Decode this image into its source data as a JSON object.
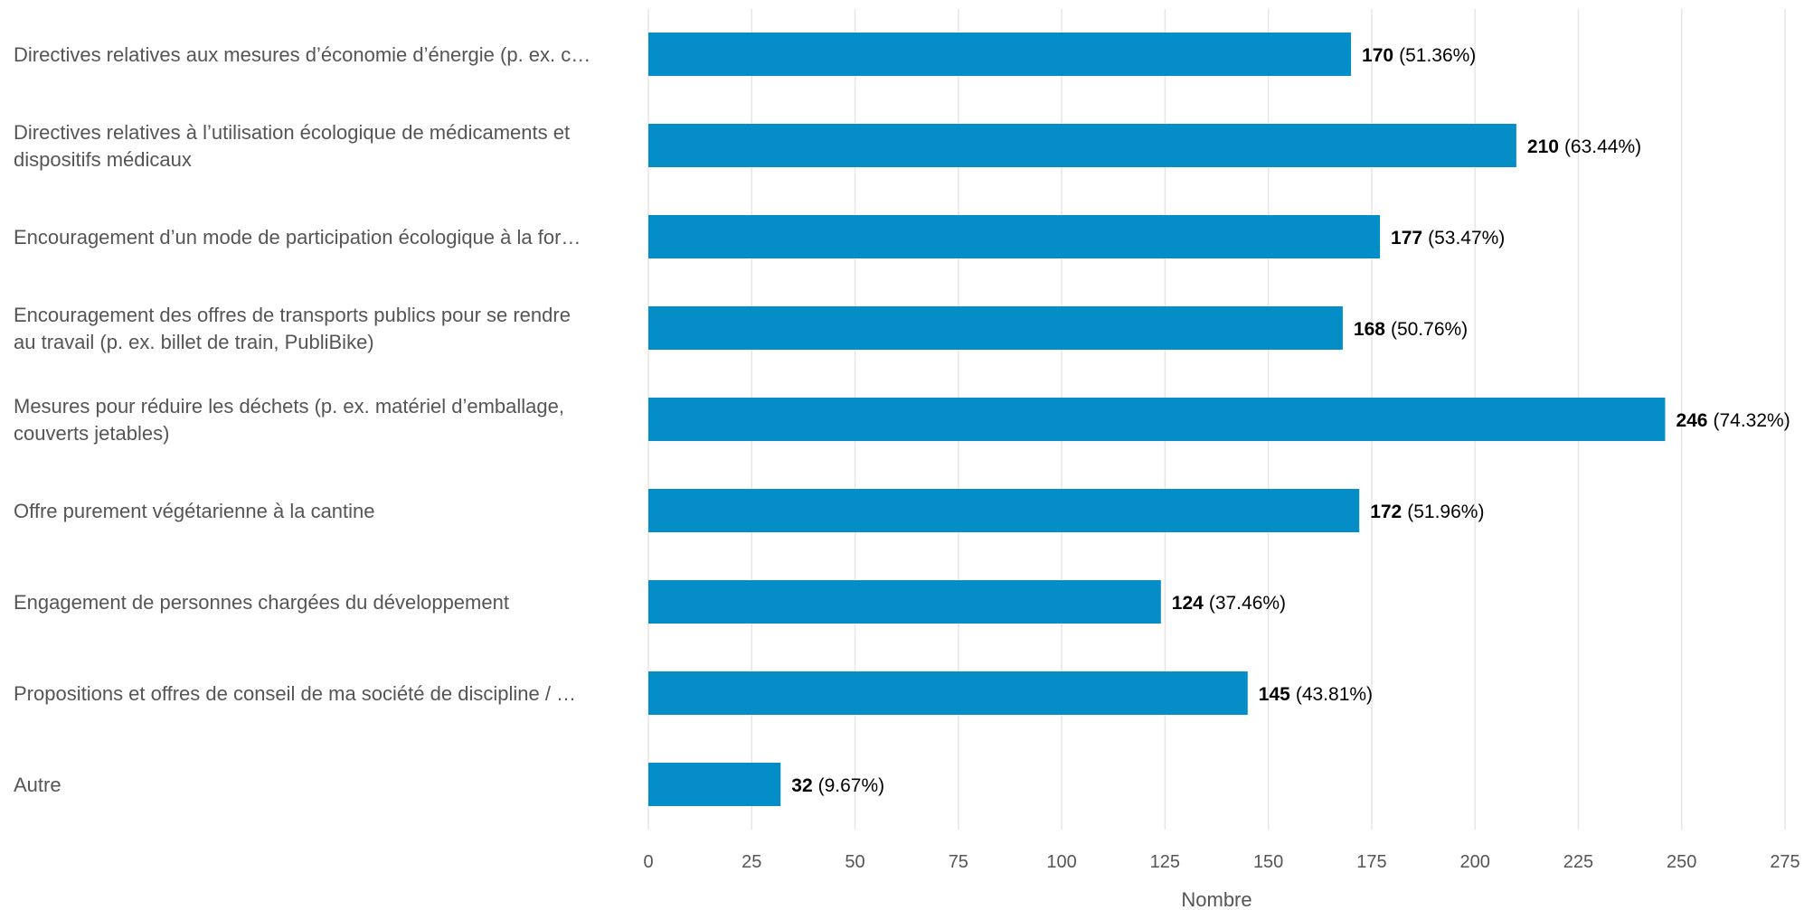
{
  "chart_data": {
    "type": "bar",
    "orientation": "horizontal",
    "categories": [
      [
        "Directives relatives aux mesures d’économie d’énergie (p. ex. c…"
      ],
      [
        "Directives relatives à l’utilisation écologique de médicaments et",
        "dispositifs médicaux"
      ],
      [
        "Encouragement d’un mode de participation écologique à la for…"
      ],
      [
        "Encouragement des offres de transports publics pour se rendre",
        "au travail (p. ex. billet de train, PubliBike)"
      ],
      [
        "Mesures pour réduire les déchets (p. ex. matériel d’emballage,",
        "couverts jetables)"
      ],
      [
        "Offre purement végétarienne à la cantine"
      ],
      [
        "Engagement de personnes chargées du développement"
      ],
      [
        "Propositions et offres de conseil de ma société de discipline / …"
      ],
      [
        "Autre"
      ]
    ],
    "values": [
      170,
      210,
      177,
      168,
      246,
      172,
      124,
      145,
      32
    ],
    "percent_labels": [
      "(51.36%)",
      "(63.44%)",
      "(53.47%)",
      "(50.76%)",
      "(74.32%)",
      "(51.96%)",
      "(37.46%)",
      "(43.81%)",
      "(9.67%)"
    ],
    "xlabel": "Nombre",
    "xlim": [
      0,
      275
    ],
    "xticks": [
      0,
      25,
      50,
      75,
      100,
      125,
      150,
      175,
      200,
      225,
      250,
      275
    ],
    "grid": "vertical",
    "bar_color": "#058DC7",
    "grid_color": "#E6E6E6",
    "label_color": "#555555"
  }
}
